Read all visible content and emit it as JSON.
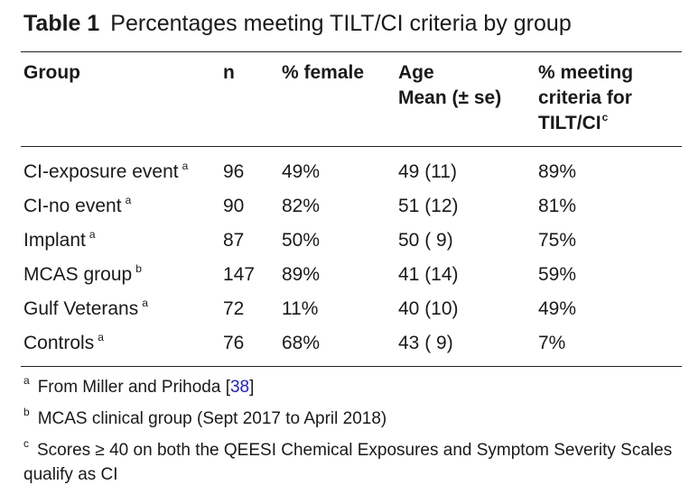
{
  "caption": {
    "label": "Table 1",
    "text": "Percentages meeting TILT/CI criteria by group"
  },
  "headers": {
    "group": "Group",
    "n": "n",
    "female": "% female",
    "age_line1": "Age",
    "age_line2": "Mean (± se)",
    "crit_line1": "% meeting",
    "crit_line2": "criteria for",
    "crit_line3": "TILT/CI",
    "crit_sup": "c"
  },
  "rows": [
    {
      "group": "CI-exposure event",
      "sup": "a",
      "n": "96",
      "female": "49%",
      "age": "49 (11)",
      "crit": "89%"
    },
    {
      "group": "CI-no event",
      "sup": "a",
      "n": "90",
      "female": "82%",
      "age": "51 (12)",
      "crit": "81%"
    },
    {
      "group": "Implant",
      "sup": "a",
      "n": "87",
      "female": "50%",
      "age": "50 ( 9)",
      "crit": "75%"
    },
    {
      "group": "MCAS group",
      "sup": "b",
      "n": "147",
      "female": "89%",
      "age": "41 (14)",
      "crit": "59%"
    },
    {
      "group": "Gulf Veterans",
      "sup": "a",
      "n": "72",
      "female": "11%",
      "age": "40 (10)",
      "crit": "49%"
    },
    {
      "group": "Controls",
      "sup": "a",
      "n": "76",
      "female": "68%",
      "age": "43 ( 9)",
      "crit": "7%"
    }
  ],
  "footnotes": {
    "a_mark": "a",
    "a_text": "From Miller and Prihoda [",
    "a_cite": "38",
    "a_close": "]",
    "b_mark": "b",
    "b_text": "MCAS clinical group (Sept 2017 to April 2018)",
    "c_mark": "c",
    "c_text": "Scores ≥ 40 on both the QEESI Chemical Exposures and Symptom Severity Scales qualify as CI"
  }
}
